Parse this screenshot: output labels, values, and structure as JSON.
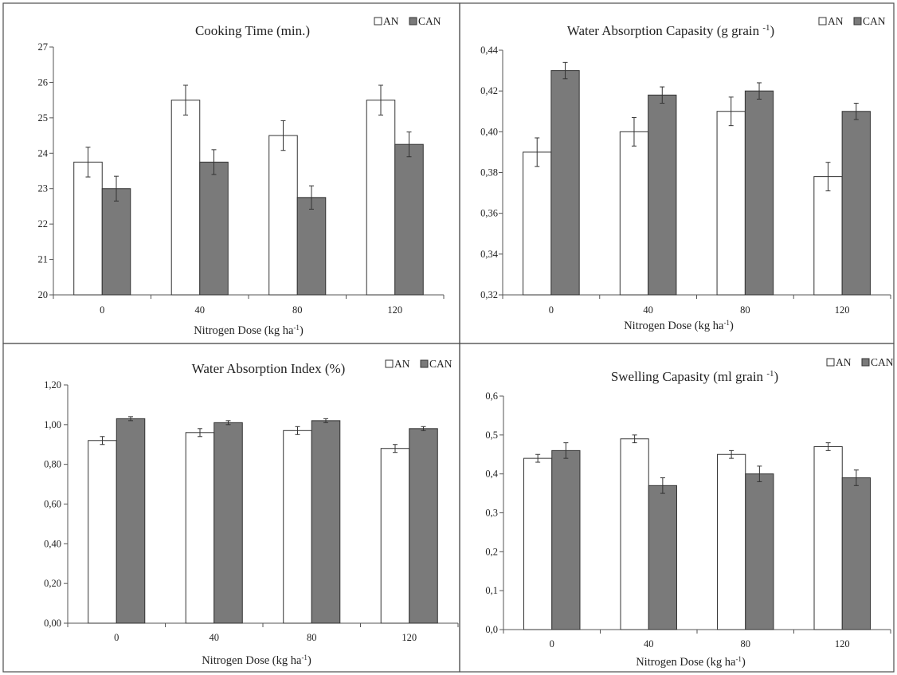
{
  "colors": {
    "AN": "#ffffff",
    "CAN": "#7a7a7a",
    "frame": "#4d4d4d"
  },
  "chart_data": [
    {
      "type": "bar",
      "title": "Cooking Time (min.)",
      "title_sup": "",
      "title_after": "",
      "xlabel": "Nitrogen Dose (kg ha",
      "xlabel_sup": "-1",
      "xlabel_after": ")",
      "ylabel": "",
      "categories": [
        "0",
        "40",
        "80",
        "120"
      ],
      "ylim": [
        20,
        27
      ],
      "yticks": [
        "20",
        "21",
        "22",
        "23",
        "24",
        "25",
        "26",
        "27"
      ],
      "series": [
        {
          "name": "AN",
          "values": [
            23.75,
            25.5,
            24.5,
            25.5
          ],
          "errors": [
            0.42,
            0.42,
            0.42,
            0.42
          ]
        },
        {
          "name": "CAN",
          "values": [
            23.0,
            23.75,
            22.75,
            24.25
          ],
          "errors": [
            0.35,
            0.35,
            0.33,
            0.35
          ]
        }
      ],
      "legend": "top-right",
      "grid": false
    },
    {
      "type": "bar",
      "title": "Water Absorption Capasity (g grain ",
      "title_sup": "-1",
      "title_after": ")",
      "xlabel": "Nitrogen Dose (kg ha",
      "xlabel_sup": "-1",
      "xlabel_after": ")",
      "ylabel": "",
      "categories": [
        "0",
        "40",
        "80",
        "120"
      ],
      "ylim": [
        0.32,
        0.44
      ],
      "yticks": [
        "0,32",
        "0,34",
        "0,36",
        "0,38",
        "0,40",
        "0,42",
        "0,44"
      ],
      "series": [
        {
          "name": "AN",
          "values": [
            0.39,
            0.4,
            0.41,
            0.378
          ],
          "errors": [
            0.007,
            0.007,
            0.007,
            0.007
          ]
        },
        {
          "name": "CAN",
          "values": [
            0.43,
            0.418,
            0.42,
            0.41
          ],
          "errors": [
            0.004,
            0.004,
            0.004,
            0.004
          ]
        }
      ],
      "legend": "top-right",
      "grid": false
    },
    {
      "type": "bar",
      "title": "Water Absorption Index (%)",
      "title_sup": "",
      "title_after": "",
      "xlabel": "Nitrogen Dose (kg ha",
      "xlabel_sup": "-1",
      "xlabel_after": ")",
      "ylabel": "",
      "categories": [
        "0",
        "40",
        "80",
        "120"
      ],
      "ylim": [
        0,
        1.2
      ],
      "yticks": [
        "0,00",
        "0,20",
        "0,40",
        "0,60",
        "0,80",
        "1,00",
        "1,20"
      ],
      "series": [
        {
          "name": "AN",
          "values": [
            0.92,
            0.96,
            0.97,
            0.88
          ],
          "errors": [
            0.02,
            0.02,
            0.02,
            0.02
          ]
        },
        {
          "name": "CAN",
          "values": [
            1.03,
            1.01,
            1.02,
            0.98
          ],
          "errors": [
            0.01,
            0.01,
            0.01,
            0.01
          ]
        }
      ],
      "legend": "top-right",
      "grid": false
    },
    {
      "type": "bar",
      "title": "Swelling Capasity (ml grain ",
      "title_sup": "-1",
      "title_after": ")",
      "xlabel": "Nitrogen Dose (kg ha",
      "xlabel_sup": "-1",
      "xlabel_after": ")",
      "ylabel": "",
      "categories": [
        "0",
        "40",
        "80",
        "120"
      ],
      "ylim": [
        0,
        0.6
      ],
      "yticks": [
        "0,0",
        "0,1",
        "0,2",
        "0,3",
        "0,4",
        "0,5",
        "0,6"
      ],
      "series": [
        {
          "name": "AN",
          "values": [
            0.44,
            0.49,
            0.45,
            0.47
          ],
          "errors": [
            0.01,
            0.01,
            0.01,
            0.01
          ]
        },
        {
          "name": "CAN",
          "values": [
            0.46,
            0.37,
            0.4,
            0.39
          ],
          "errors": [
            0.02,
            0.02,
            0.02,
            0.02
          ]
        }
      ],
      "legend": "top-right",
      "grid": false
    }
  ]
}
